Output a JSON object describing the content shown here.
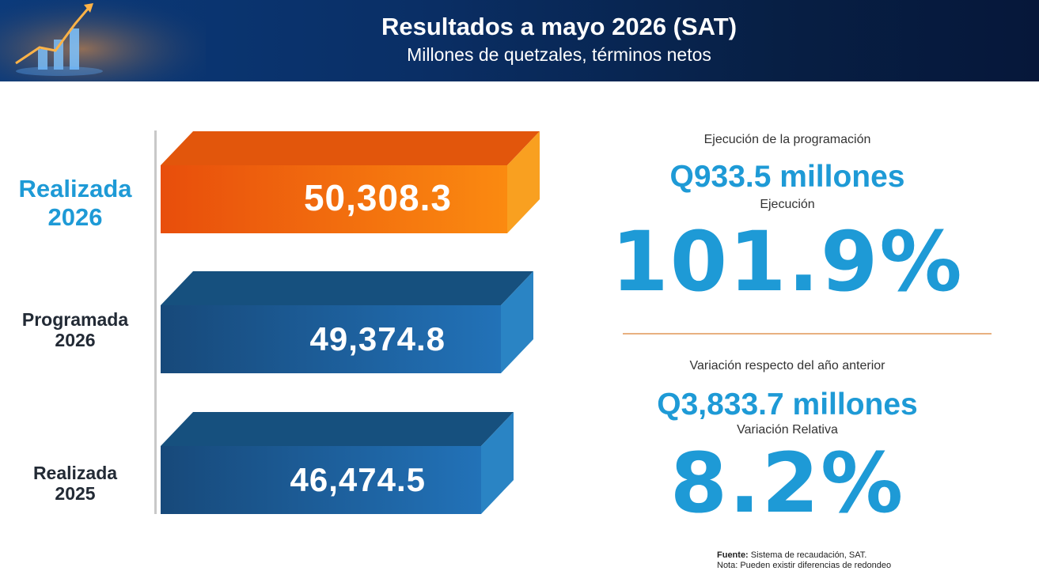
{
  "header": {
    "title": "Resultados a mayo 2026 (SAT)",
    "subtitle": "Millones de quetzales, términos netos"
  },
  "chart_data": {
    "type": "bar",
    "orientation": "horizontal",
    "categories": [
      "Realizada 2026",
      "Programada 2026",
      "Realizada 2025"
    ],
    "values": [
      50308.3,
      49374.8,
      46474.5
    ],
    "value_labels": [
      "50,308.3",
      "49,374.8",
      "46,474.5"
    ],
    "category_lines": [
      [
        "Realizada",
        "2026"
      ],
      [
        "Programada",
        "2026"
      ],
      [
        "Realizada",
        "2025"
      ]
    ],
    "colors": [
      "#f07a12",
      "#1e5d94",
      "#1e5d94"
    ],
    "title": "",
    "xlabel": "",
    "ylabel": ""
  },
  "stats": {
    "execution_label": "Ejecución de la programación",
    "execution_amount": "Q933.5 millones",
    "execution_pct_label": "Ejecución",
    "execution_pct": "101.9%",
    "variation_label": "Variación respecto del año anterior",
    "variation_amount": "Q3,833.7 millones",
    "variation_pct_label": "Variación Relativa",
    "variation_pct": "8.2%"
  },
  "footer": {
    "source_label": "Fuente:",
    "source_text": " Sistema de recaudación, SAT.",
    "note": "Nota: Pueden existir diferencias de redondeo"
  }
}
